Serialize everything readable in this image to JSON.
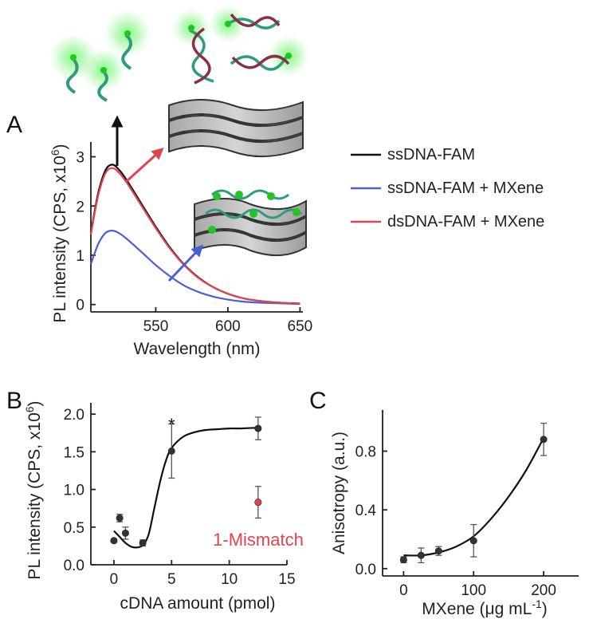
{
  "panels": {
    "A": "A",
    "B": "B",
    "C": "C"
  },
  "chart_data": [
    {
      "id": "A",
      "type": "line",
      "xlabel": "Wavelength (nm)",
      "ylabel": "PL intensity (CPS, x10",
      "ylabel_sup": "6",
      "ylabel_end": ")",
      "xlim": [
        505,
        652
      ],
      "ylim": [
        -0.15,
        3.3
      ],
      "xticks": [
        550,
        600,
        650
      ],
      "yticks": [
        0,
        1,
        2,
        3
      ],
      "legend_position": "right",
      "series": [
        {
          "name": "ssDNA-FAM",
          "color": "#111111",
          "x": [
            505,
            510,
            515,
            520,
            525,
            530,
            540,
            550,
            560,
            570,
            580,
            590,
            600,
            610,
            620,
            630,
            640,
            650
          ],
          "y": [
            1.45,
            2.25,
            2.72,
            2.84,
            2.72,
            2.52,
            2.05,
            1.58,
            1.15,
            0.8,
            0.54,
            0.35,
            0.22,
            0.13,
            0.08,
            0.05,
            0.03,
            0.02
          ]
        },
        {
          "name": "ssDNA-FAM + MXene",
          "color": "#4a5fd6",
          "x": [
            505,
            510,
            515,
            520,
            525,
            530,
            540,
            550,
            560,
            570,
            580,
            590,
            600,
            610,
            620,
            630,
            640,
            650
          ],
          "y": [
            0.82,
            1.22,
            1.45,
            1.5,
            1.44,
            1.33,
            1.07,
            0.8,
            0.57,
            0.38,
            0.25,
            0.16,
            0.1,
            0.06,
            0.04,
            0.03,
            0.02,
            0.01
          ]
        },
        {
          "name": "dsDNA-FAM + MXene",
          "color": "#e0444e",
          "x": [
            505,
            510,
            515,
            520,
            525,
            530,
            540,
            550,
            560,
            570,
            580,
            590,
            600,
            610,
            620,
            630,
            640,
            650
          ],
          "y": [
            1.42,
            2.2,
            2.66,
            2.77,
            2.66,
            2.47,
            2.01,
            1.55,
            1.13,
            0.79,
            0.53,
            0.35,
            0.22,
            0.13,
            0.08,
            0.05,
            0.03,
            0.02
          ]
        }
      ]
    },
    {
      "id": "B",
      "type": "scatter",
      "xlabel": "cDNA amount (pmol)",
      "ylabel": "PL intensity (CPS, x10",
      "ylabel_sup": "6",
      "ylabel_end": ")",
      "xlim": [
        -2,
        15
      ],
      "ylim": [
        0,
        2.15
      ],
      "xticks": [
        0,
        5,
        10,
        15
      ],
      "yticks": [
        0.0,
        0.5,
        1.0,
        1.5,
        2.0
      ],
      "points": [
        {
          "x": 0,
          "y": 0.32,
          "err": 0.02
        },
        {
          "x": 0.5,
          "y": 0.62,
          "err": 0.05
        },
        {
          "x": 1,
          "y": 0.42,
          "err": 0.08
        },
        {
          "x": 2.5,
          "y": 0.29,
          "err": 0.04
        },
        {
          "x": 5,
          "y": 1.51,
          "err": 0.36
        },
        {
          "x": 12.5,
          "y": 1.81,
          "err": 0.15
        }
      ],
      "fit": {
        "x": [
          0,
          0.5,
          1,
          1.5,
          2,
          2.5,
          3,
          3.5,
          4,
          4.5,
          5,
          6,
          7,
          8,
          9,
          10,
          11,
          12.5
        ],
        "y": [
          0.45,
          0.37,
          0.29,
          0.24,
          0.23,
          0.26,
          0.4,
          0.75,
          1.1,
          1.38,
          1.55,
          1.7,
          1.76,
          1.79,
          1.8,
          1.81,
          1.81,
          1.82
        ]
      },
      "mismatch": {
        "label": "1-Mismatch",
        "x": 12.5,
        "y": 0.83,
        "err": 0.21,
        "color": "#e0444e"
      },
      "star": {
        "text": "*",
        "x": 5
      }
    },
    {
      "id": "C",
      "type": "scatter",
      "xlabel": "MXene (μg mL",
      "xlabel_sup": "-1",
      "xlabel_end": ")",
      "ylabel": "Anisotropy (a.u.)",
      "xlim": [
        -30,
        250
      ],
      "ylim": [
        -0.05,
        1.08
      ],
      "xticks": [
        0,
        100,
        200
      ],
      "yticks": [
        0.0,
        0.4,
        0.8
      ],
      "points": [
        {
          "x": 0,
          "y": 0.06,
          "err": 0.02
        },
        {
          "x": 25,
          "y": 0.09,
          "err": 0.05
        },
        {
          "x": 50,
          "y": 0.12,
          "err": 0.03
        },
        {
          "x": 100,
          "y": 0.19,
          "err": 0.11
        },
        {
          "x": 200,
          "y": 0.88,
          "err": 0.11
        }
      ],
      "fit": {
        "x": [
          0,
          25,
          50,
          75,
          100,
          125,
          150,
          175,
          200
        ],
        "y": [
          0.09,
          0.09,
          0.11,
          0.15,
          0.22,
          0.34,
          0.49,
          0.67,
          0.89
        ]
      }
    }
  ]
}
